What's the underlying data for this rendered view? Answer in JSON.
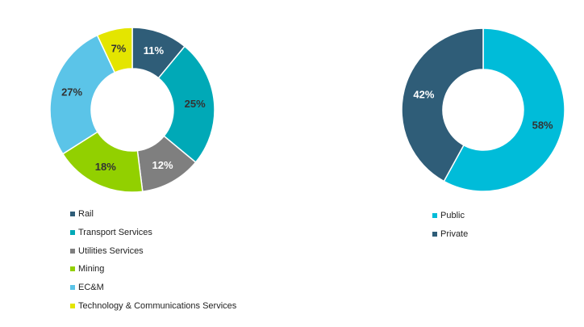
{
  "chart_data": [
    {
      "type": "pie",
      "donut": true,
      "categories": [
        "Rail",
        "Transport Services",
        "Utilities Services",
        "Mining",
        "EC&M",
        "Technology & Communications Services"
      ],
      "values": [
        11,
        25,
        12,
        18,
        27,
        7
      ],
      "labels": [
        "11%",
        "25%",
        "12%",
        "18%",
        "27%",
        "7%"
      ],
      "colors": [
        "#2f5d78",
        "#00a9b7",
        "#7f7f7f",
        "#92d000",
        "#5bc4e8",
        "#e4e500"
      ],
      "label_colors": [
        "#ffffff",
        "#333333",
        "#ffffff",
        "#333333",
        "#333333",
        "#333333"
      ],
      "legend_position": "bottom"
    },
    {
      "type": "pie",
      "donut": true,
      "categories": [
        "Public",
        "Private"
      ],
      "values": [
        58,
        42
      ],
      "labels": [
        "58%",
        "42%"
      ],
      "colors": [
        "#00bcd9",
        "#2f5d78"
      ],
      "label_colors": [
        "#333333",
        "#ffffff"
      ],
      "legend_position": "bottom"
    }
  ]
}
